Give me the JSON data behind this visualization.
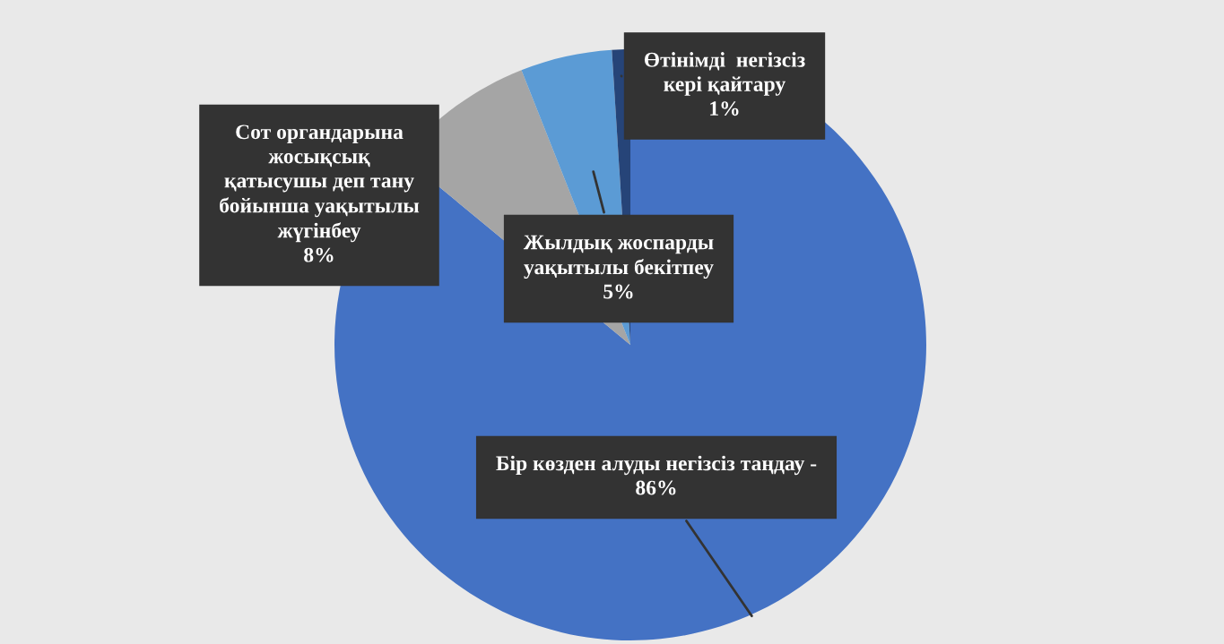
{
  "chart_data": {
    "type": "pie",
    "categories": [
      "Бір көзден алуды негізсіз таңдау -",
      "Сот органдарына\nжосықсық\nқатысушы деп тану\nбойынша уақытылы\nжүгінбеу",
      "Жылдық жоспарды\nуақытылы бекітпеу",
      "Өтінімді  негізсіз\nкері қайтару"
    ],
    "values": [
      86,
      8,
      5,
      1
    ],
    "value_labels": [
      "86%",
      "8%",
      "5%",
      "1%"
    ],
    "colors": [
      "#4472c4",
      "#a5a5a5",
      "#5b9bd5",
      "#264478"
    ]
  }
}
